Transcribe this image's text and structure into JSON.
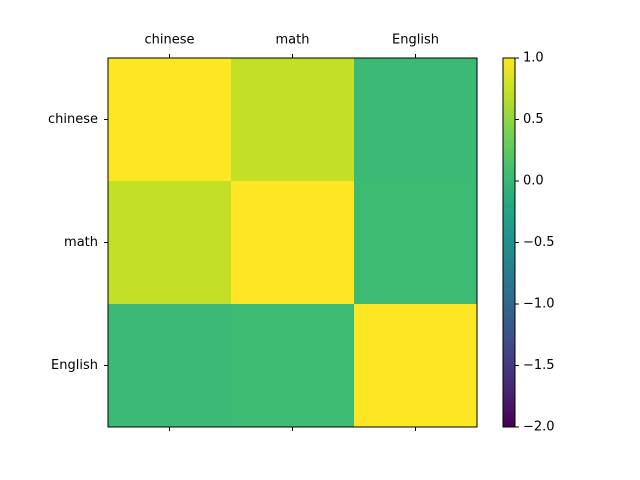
{
  "chart_data": {
    "type": "heatmap",
    "categories": [
      "chinese",
      "math",
      "English"
    ],
    "values": [
      [
        1,
        0.73,
        0.03
      ],
      [
        0.73,
        1,
        0.05
      ],
      [
        0.03,
        0.05,
        1
      ]
    ],
    "colormap": "viridis",
    "clim": [
      -2,
      1
    ],
    "cticks": [
      {
        "value": 1,
        "label": "1.0"
      },
      0.5,
      {
        "value": 0,
        "label": "0.0"
      },
      {
        "value": -0.5,
        "label": "−0.5"
      },
      {
        "value": -1,
        "label": "−1.0"
      },
      {
        "value": -1.5,
        "label": "−1.5"
      },
      {
        "value": -2,
        "label": "−2.0"
      }
    ]
  }
}
